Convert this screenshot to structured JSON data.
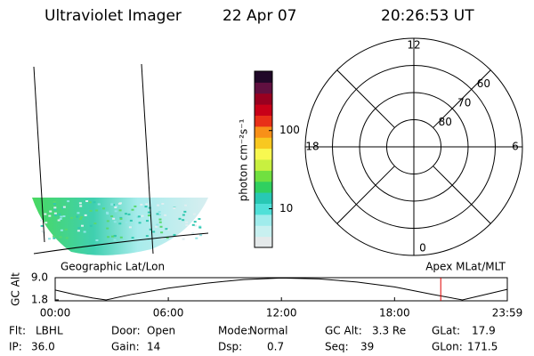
{
  "header": {
    "title": "Ultraviolet Imager",
    "date": "22 Apr 07",
    "time": "20:26:53 UT"
  },
  "map": {
    "left_label": "Geographic Lat/Lon",
    "right_label": "Apex MLat/MLT"
  },
  "colorbar": {
    "label": "photon cm⁻²s⁻¹",
    "log_scale": true,
    "lim": [
      3.2,
      575
    ],
    "ticks": [
      10,
      100
    ],
    "colors": [
      "#e4e9ea",
      "#c8f0f0",
      "#a0ecec",
      "#50e0d8",
      "#28c8b4",
      "#30d060",
      "#70e040",
      "#c8f040",
      "#f8f850",
      "#f8c820",
      "#f89018",
      "#e83018",
      "#c80018",
      "#980020",
      "#601040",
      "#200828"
    ]
  },
  "polar": {
    "rlim": [
      90,
      50
    ],
    "rticks": [
      80,
      70,
      60
    ],
    "mlt_ticks": [
      12,
      18,
      6,
      0
    ]
  },
  "altitude": {
    "type": "line",
    "ylabel": "GC Alt",
    "x": [
      0,
      1,
      2,
      2.7,
      4,
      6,
      8,
      10,
      12,
      14,
      16,
      18,
      20,
      21.6,
      23,
      23.98
    ],
    "values": [
      5.0,
      3.6,
      2.4,
      1.8,
      3.5,
      5.6,
      7.2,
      8.4,
      8.9,
      8.6,
      7.6,
      6.0,
      3.6,
      1.8,
      3.8,
      5.2
    ],
    "color": "#000000",
    "xlim": [
      0,
      23.98
    ],
    "ylim": [
      1.5,
      9.0
    ],
    "xticks": [
      {
        "value": 0,
        "label": "00:00"
      },
      {
        "value": 6,
        "label": "06:00"
      },
      {
        "value": 12,
        "label": "12:00"
      },
      {
        "value": 18,
        "label": "18:00"
      },
      {
        "value": 23.98,
        "label": "23:59"
      }
    ],
    "yticks": [
      1.8,
      {
        "value": 9.0,
        "label": "9.0"
      }
    ],
    "marker_x": 20.45,
    "marker_color": "#e00000"
  },
  "info": [
    [
      {
        "label": "Flt:",
        "value": "LBHL"
      },
      {
        "label": "Door:",
        "value": "Open"
      },
      {
        "label": "Mode:",
        "value": "Normal"
      },
      {
        "label": "GC Alt:",
        "value": "3.3 Re"
      },
      {
        "label": "GLat:",
        "value": "17.9"
      }
    ],
    [
      {
        "label": "IP:",
        "value": "36.0"
      },
      {
        "label": "Gain:",
        "value": "14"
      },
      {
        "label": "Dsp:",
        "value": "0.7"
      },
      {
        "label": "Seq:",
        "value": "39"
      },
      {
        "label": "GLon:",
        "value": "171.5"
      }
    ]
  ]
}
